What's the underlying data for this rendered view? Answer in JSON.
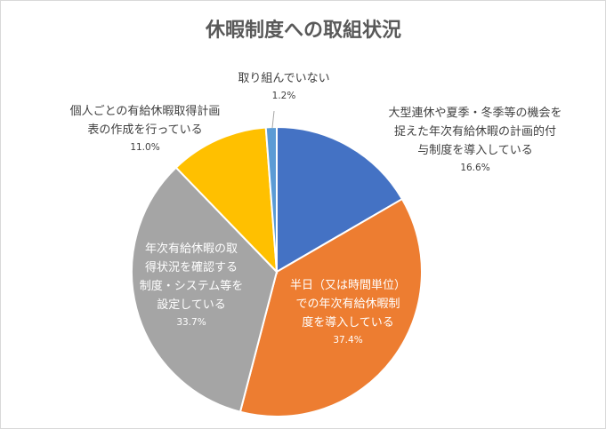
{
  "chart_data": {
    "type": "pie",
    "title": "休暇制度への取組状況",
    "start_angle_deg": 0,
    "direction": "clockwise",
    "slices": [
      {
        "lines": [
          "大型連休や夏季・冬季等の機会を",
          "捉えた年次有給休暇の計画的付",
          "与制度を導入している"
        ],
        "value_text": "16.6%",
        "value": 16.6,
        "color": "#4472C4"
      },
      {
        "lines": [
          "半日（又は時間単位）",
          "での年次有給休暇制",
          "度を導入している"
        ],
        "value_text": "37.4%",
        "value": 37.4,
        "color": "#ED7D31"
      },
      {
        "lines": [
          "年次有給休暇の取",
          "得状況を確認する",
          "制度・システム等を",
          "設定している"
        ],
        "value_text": "33.7%",
        "value": 33.7,
        "color": "#A5A5A5"
      },
      {
        "lines": [
          "個人ごとの有給休暇取得計画",
          "表の作成を行っている"
        ],
        "value_text": "11.0%",
        "value": 11.0,
        "color": "#FFC000"
      },
      {
        "lines": [
          "取り組んでいない"
        ],
        "value_text": "1.2%",
        "value": 1.2,
        "color": "#5B9BD5"
      }
    ]
  }
}
